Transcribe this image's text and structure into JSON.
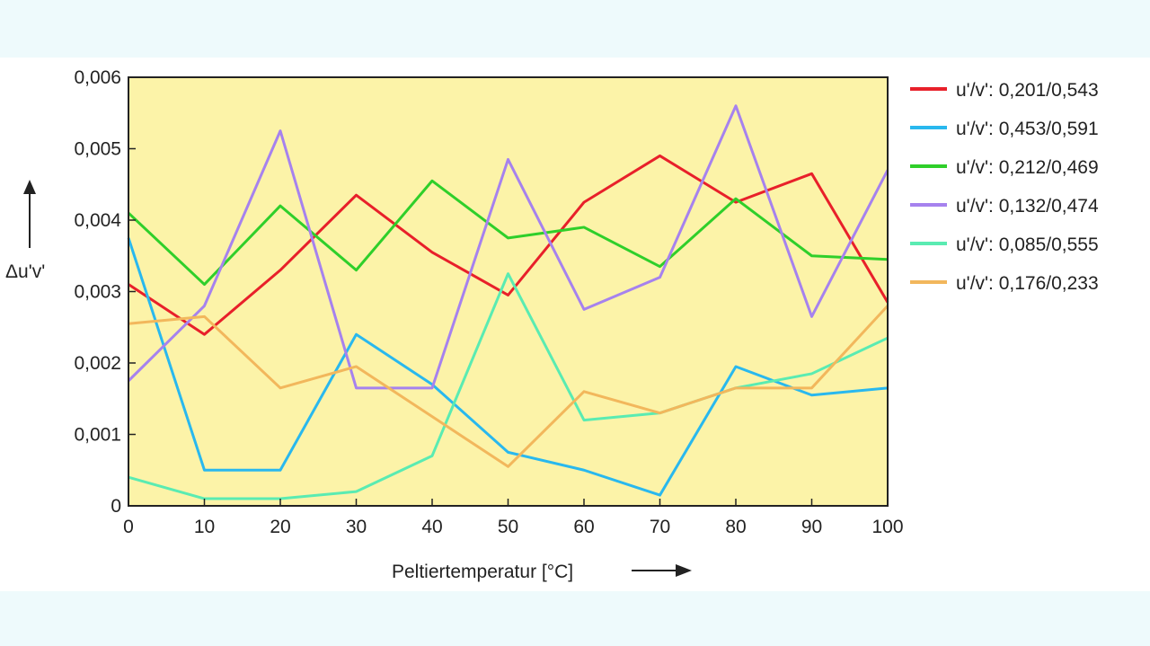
{
  "chart_data": {
    "type": "line",
    "title": "",
    "xlabel": "Peltiertemperatur [°C]",
    "ylabel": "Δu'v'",
    "x": [
      0,
      10,
      20,
      30,
      40,
      50,
      60,
      70,
      80,
      90,
      100
    ],
    "xlim": [
      0,
      100
    ],
    "ylim": [
      0,
      0.006
    ],
    "x_ticks": [
      "0",
      "10",
      "20",
      "30",
      "40",
      "50",
      "60",
      "70",
      "80",
      "90",
      "100"
    ],
    "y_ticks": [
      "0",
      "0,001",
      "0,002",
      "0,003",
      "0,004",
      "0,005",
      "0,006"
    ],
    "grid": false,
    "legend_position": "right",
    "plot_background": "#fcf3a8",
    "series": [
      {
        "name": "u'/v': 0,201/0,543",
        "color": "#e8202a",
        "values": [
          0.0031,
          0.0024,
          0.0033,
          0.00435,
          0.00355,
          0.00295,
          0.00425,
          0.0049,
          0.00425,
          0.00465,
          0.00285
        ]
      },
      {
        "name": "u'/v': 0,453/0,591",
        "color": "#29b8ee",
        "values": [
          0.00375,
          0.0005,
          0.0005,
          0.0024,
          0.0017,
          0.00075,
          0.0005,
          0.00015,
          0.00195,
          0.00155,
          0.00165
        ]
      },
      {
        "name": "u'/v': 0,212/0,469",
        "color": "#2fcf2a",
        "values": [
          0.0041,
          0.0031,
          0.0042,
          0.0033,
          0.00455,
          0.00375,
          0.0039,
          0.00335,
          0.0043,
          0.0035,
          0.00345
        ]
      },
      {
        "name": "u'/v': 0,132/0,474",
        "color": "#a682ee",
        "values": [
          0.00175,
          0.0028,
          0.00525,
          0.00165,
          0.00165,
          0.00485,
          0.00275,
          0.0032,
          0.0056,
          0.00265,
          0.0047
        ]
      },
      {
        "name": "u'/v': 0,085/0,555",
        "color": "#5aebb2",
        "values": [
          0.0004,
          0.0001,
          0.0001,
          0.0002,
          0.0007,
          0.00325,
          0.0012,
          0.0013,
          0.00165,
          0.00185,
          0.00235
        ]
      },
      {
        "name": "u'/v': 0,176/0,233",
        "color": "#f2b75c",
        "values": [
          0.00255,
          0.00265,
          0.00165,
          0.00195,
          0.00125,
          0.00055,
          0.0016,
          0.0013,
          0.00165,
          0.00165,
          0.0028
        ]
      }
    ]
  }
}
